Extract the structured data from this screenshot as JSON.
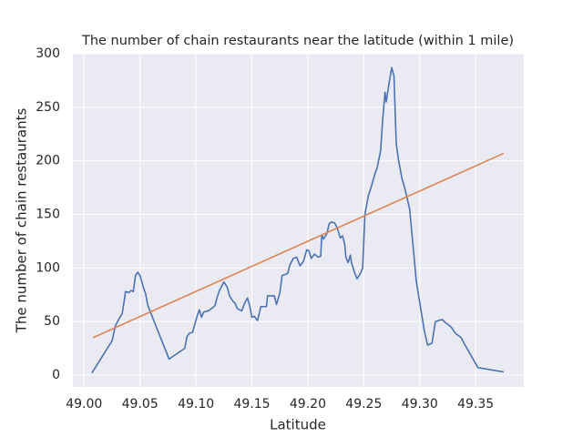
{
  "chart_data": {
    "type": "line",
    "title": "The number of chain restaurants near the latitude (within 1 mile)",
    "x_label": "Latitude",
    "y_label": "The number of chain restaurants",
    "xlim": [
      48.99,
      49.393
    ],
    "ylim": [
      -11,
      300
    ],
    "xticks": [
      {
        "value": 49.0,
        "label": "49.00"
      },
      {
        "value": 49.05,
        "label": "49.05"
      },
      {
        "value": 49.1,
        "label": "49.10"
      },
      {
        "value": 49.15,
        "label": "49.15"
      },
      {
        "value": 49.2,
        "label": "49.20"
      },
      {
        "value": 49.25,
        "label": "49.25"
      },
      {
        "value": 49.3,
        "label": "49.30"
      },
      {
        "value": 49.35,
        "label": "49.35"
      }
    ],
    "yticks": [
      0,
      50,
      100,
      150,
      200,
      250,
      300
    ],
    "grid": true,
    "series": [
      {
        "color": "#4c72b0",
        "x": [
          49.007,
          49.025,
          49.028,
          49.032,
          49.034,
          49.036,
          49.037,
          49.04,
          49.042,
          49.044,
          49.046,
          49.048,
          49.05,
          49.053,
          49.055,
          49.057,
          49.06,
          49.076,
          49.09,
          49.092,
          49.094,
          49.097,
          49.101,
          49.103,
          49.105,
          49.107,
          49.111,
          49.115,
          49.117,
          49.119,
          49.121,
          49.125,
          49.128,
          49.13,
          49.133,
          49.135,
          49.137,
          49.141,
          49.143,
          49.146,
          49.148,
          49.15,
          49.152,
          49.155,
          49.158,
          49.163,
          49.164,
          49.17,
          49.172,
          49.175,
          49.177,
          49.18,
          49.182,
          49.184,
          49.187,
          49.19,
          49.193,
          49.196,
          49.199,
          49.201,
          49.203,
          49.206,
          49.209,
          49.2115,
          49.2125,
          49.214,
          49.217,
          49.219,
          49.221,
          49.224,
          49.226,
          49.229,
          49.231,
          49.233,
          49.234,
          49.236,
          49.238,
          49.239,
          49.242,
          49.244,
          49.247,
          49.249,
          49.251,
          49.254,
          49.257,
          49.26,
          49.262,
          49.265,
          49.267,
          49.269,
          49.27,
          49.273,
          49.275,
          49.277,
          49.279,
          49.281,
          49.284,
          49.287,
          49.291,
          49.297,
          49.304,
          49.307,
          49.311,
          49.314,
          49.32,
          49.323,
          49.328,
          49.332,
          49.337,
          49.34,
          49.352,
          49.375
        ],
        "values": [
          2,
          32,
          46,
          54,
          57,
          70,
          78,
          77,
          79,
          78,
          93,
          96,
          93,
          82,
          76,
          65,
          57,
          15,
          25,
          36,
          39,
          40,
          55,
          61,
          54,
          59,
          60,
          63,
          65,
          73,
          79,
          87,
          82,
          74,
          69,
          67,
          62,
          60,
          66,
          72,
          65,
          54,
          55,
          51,
          64,
          64,
          74,
          74,
          66,
          77,
          93,
          94,
          95,
          103,
          109,
          110,
          102,
          106,
          117,
          116,
          109,
          113,
          110,
          111,
          131,
          127,
          132,
          141,
          143,
          142,
          138,
          128,
          130,
          122,
          110,
          105,
          112,
          105,
          95,
          90,
          95,
          100,
          150,
          167,
          177,
          188,
          194,
          209,
          240,
          264,
          255,
          275,
          287,
          279,
          216,
          201,
          184,
          173,
          155,
          87,
          42,
          28,
          30,
          50,
          52,
          49,
          45,
          39,
          35,
          29,
          7,
          3
        ]
      },
      {
        "color": "#dd8452",
        "x": [
          49.008,
          49.375
        ],
        "values": [
          35,
          207
        ]
      }
    ]
  }
}
